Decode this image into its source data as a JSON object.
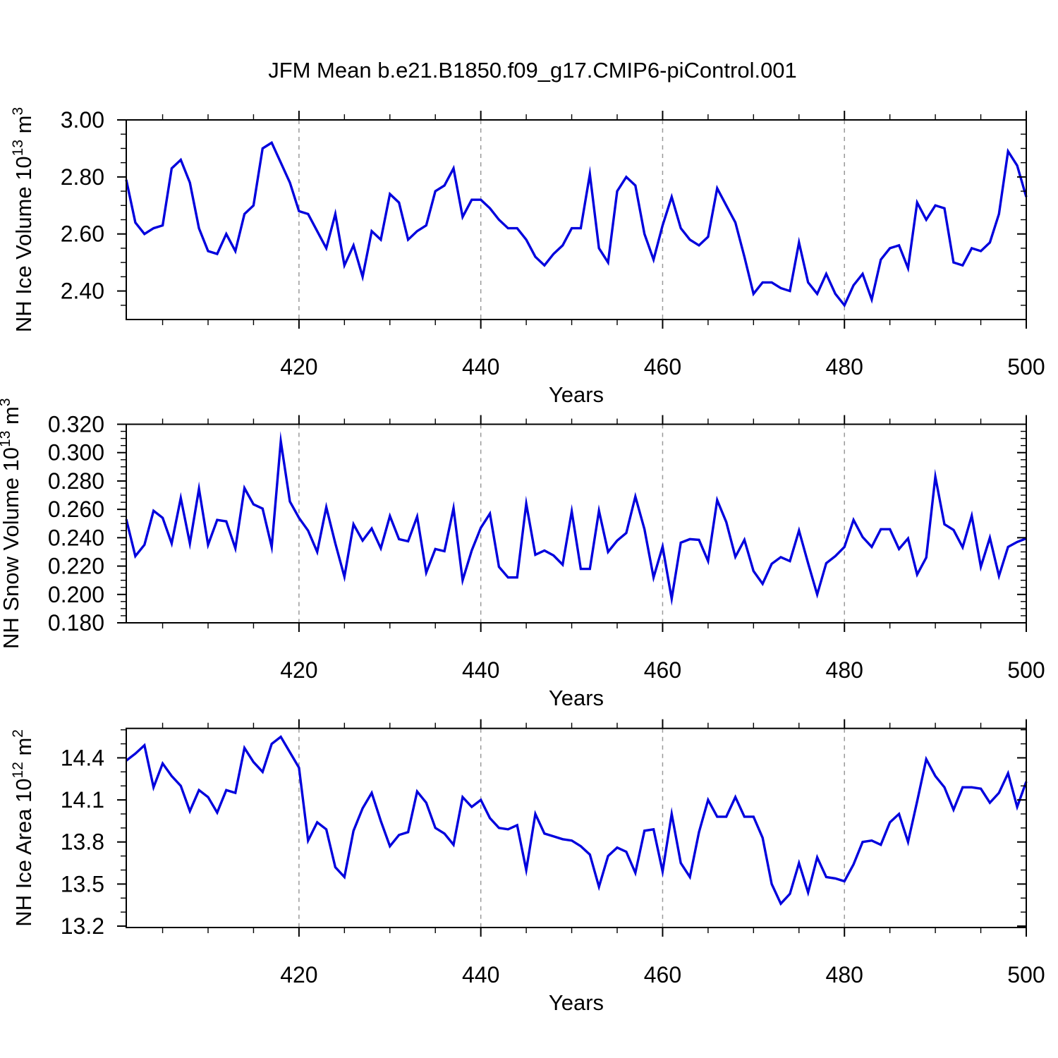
{
  "title": "JFM Mean b.e21.B1850.f09_g17.CMIP6-piControl.001",
  "colors": {
    "line": "#0000dd",
    "axis": "#000000",
    "grid": "#999999",
    "background": "#ffffff"
  },
  "chart_data": [
    {
      "type": "line",
      "name": "nh-ice-volume",
      "ylabel_parts": [
        {
          "t": "NH Ice Volume 10"
        },
        {
          "t": "13",
          "sup": true
        },
        {
          "t": " m"
        },
        {
          "t": "3",
          "sup": true
        }
      ],
      "xlabel": "Years",
      "ylim": [
        2.3,
        3.0
      ],
      "yticks": [
        3.0,
        2.8,
        2.6,
        2.4
      ],
      "ytick_labels": [
        "3.00",
        "2.80",
        "2.60",
        "2.40"
      ],
      "y_minor": [
        2.95,
        2.9,
        2.85,
        2.75,
        2.7,
        2.65,
        2.55,
        2.5,
        2.45,
        2.35
      ],
      "xlim": [
        401,
        500
      ],
      "xticks": [
        420,
        440,
        460,
        480,
        500
      ],
      "xtick_labels": [
        "420",
        "440",
        "460",
        "480",
        "500"
      ],
      "x_minor": [
        405,
        410,
        415,
        425,
        430,
        435,
        445,
        450,
        455,
        465,
        470,
        475,
        485,
        490,
        495
      ],
      "grid_x": [
        420,
        440,
        460,
        480
      ],
      "x_start": 401,
      "values": [
        2.79,
        2.64,
        2.6,
        2.62,
        2.63,
        2.83,
        2.86,
        2.78,
        2.62,
        2.54,
        2.53,
        2.6,
        2.54,
        2.67,
        2.7,
        2.9,
        2.92,
        2.85,
        2.78,
        2.68,
        2.67,
        2.61,
        2.55,
        2.67,
        2.49,
        2.56,
        2.45,
        2.61,
        2.58,
        2.74,
        2.71,
        2.58,
        2.61,
        2.63,
        2.75,
        2.77,
        2.83,
        2.66,
        2.72,
        2.72,
        2.69,
        2.65,
        2.62,
        2.62,
        2.58,
        2.52,
        2.49,
        2.53,
        2.56,
        2.62,
        2.62,
        2.81,
        2.55,
        2.5,
        2.75,
        2.8,
        2.77,
        2.6,
        2.51,
        2.63,
        2.73,
        2.62,
        2.58,
        2.56,
        2.59,
        2.76,
        2.7,
        2.64,
        2.52,
        2.39,
        2.43,
        2.43,
        2.41,
        2.4,
        2.57,
        2.43,
        2.39,
        2.46,
        2.39,
        2.35,
        2.42,
        2.46,
        2.37,
        2.51,
        2.55,
        2.56,
        2.48,
        2.71,
        2.65,
        2.7,
        2.69,
        2.5,
        2.49,
        2.55,
        2.54,
        2.57,
        2.67,
        2.89,
        2.84,
        2.73
      ]
    },
    {
      "type": "line",
      "name": "nh-snow-volume",
      "ylabel_parts": [
        {
          "t": "NH Snow Volume 10"
        },
        {
          "t": "13",
          "sup": true
        },
        {
          "t": " m"
        },
        {
          "t": "3",
          "sup": true
        }
      ],
      "xlabel": "Years",
      "ylim": [
        0.18,
        0.32
      ],
      "yticks": [
        0.32,
        0.3,
        0.28,
        0.26,
        0.24,
        0.22,
        0.2,
        0.18
      ],
      "ytick_labels": [
        "0.320",
        "0.300",
        "0.280",
        "0.260",
        "0.240",
        "0.220",
        "0.200",
        "0.180"
      ],
      "y_minor": [
        0.315,
        0.31,
        0.305,
        0.295,
        0.29,
        0.285,
        0.275,
        0.27,
        0.265,
        0.255,
        0.25,
        0.245,
        0.235,
        0.23,
        0.225,
        0.215,
        0.21,
        0.205,
        0.195,
        0.19,
        0.185
      ],
      "xlim": [
        401,
        500
      ],
      "xticks": [
        420,
        440,
        460,
        480,
        500
      ],
      "xtick_labels": [
        "420",
        "440",
        "460",
        "480",
        "500"
      ],
      "x_minor": [
        405,
        410,
        415,
        425,
        430,
        435,
        445,
        450,
        455,
        465,
        470,
        475,
        485,
        490,
        495
      ],
      "grid_x": [
        420,
        440,
        460,
        480
      ],
      "x_start": 401,
      "values": [
        0.253,
        0.227,
        0.235,
        0.259,
        0.254,
        0.236,
        0.268,
        0.236,
        0.2745,
        0.235,
        0.2525,
        0.2515,
        0.2325,
        0.275,
        0.2635,
        0.2605,
        0.2335,
        0.308,
        0.2655,
        0.254,
        0.245,
        0.23,
        0.2615,
        0.236,
        0.2125,
        0.2495,
        0.238,
        0.2465,
        0.2325,
        0.2553,
        0.239,
        0.2375,
        0.2549,
        0.2154,
        0.232,
        0.2305,
        0.2608,
        0.21,
        0.231,
        0.247,
        0.257,
        0.2195,
        0.212,
        0.212,
        0.264,
        0.228,
        0.231,
        0.2275,
        0.221,
        0.2586,
        0.218,
        0.218,
        0.259,
        0.23,
        0.238,
        0.2433,
        0.269,
        0.246,
        0.212,
        0.2337,
        0.197,
        0.2365,
        0.239,
        0.2385,
        0.2235,
        0.2665,
        0.251,
        0.2265,
        0.2385,
        0.2165,
        0.2075,
        0.2216,
        0.2263,
        0.2235,
        0.245,
        0.222,
        0.2,
        0.222,
        0.227,
        0.2335,
        0.2525,
        0.2405,
        0.2335,
        0.246,
        0.246,
        0.232,
        0.2395,
        0.214,
        0.226,
        0.283,
        0.2495,
        0.2455,
        0.2332,
        0.2555,
        0.2195,
        0.24,
        0.213,
        0.2335,
        0.237,
        0.2395
      ]
    },
    {
      "type": "line",
      "name": "nh-ice-area",
      "ylabel_parts": [
        {
          "t": "NH Ice Area 10"
        },
        {
          "t": "12",
          "sup": true
        },
        {
          "t": " m"
        },
        {
          "t": "2",
          "sup": true
        }
      ],
      "xlabel": "Years",
      "ylim": [
        13.19,
        14.61
      ],
      "yticks": [
        14.4,
        14.1,
        13.8,
        13.5,
        13.2
      ],
      "ytick_labels": [
        "14.4",
        "14.1",
        "13.8",
        "13.5",
        "13.2"
      ],
      "y_minor": [
        14.6,
        14.5,
        14.3,
        14.2,
        14.0,
        13.9,
        13.7,
        13.6,
        13.4,
        13.3
      ],
      "xlim": [
        401,
        500
      ],
      "xticks": [
        420,
        440,
        460,
        480,
        500
      ],
      "xtick_labels": [
        "420",
        "440",
        "460",
        "480",
        "500"
      ],
      "x_minor": [
        405,
        410,
        415,
        425,
        430,
        435,
        445,
        450,
        455,
        465,
        470,
        475,
        485,
        490,
        495
      ],
      "grid_x": [
        420,
        440,
        460,
        480
      ],
      "x_start": 401,
      "values": [
        14.38,
        14.43,
        14.49,
        14.19,
        14.36,
        14.27,
        14.2,
        14.02,
        14.17,
        14.12,
        14.01,
        14.17,
        14.15,
        14.47,
        14.37,
        14.3,
        14.5,
        14.55,
        14.44,
        14.33,
        13.81,
        13.94,
        13.89,
        13.62,
        13.55,
        13.88,
        14.04,
        14.15,
        13.95,
        13.77,
        13.85,
        13.87,
        14.16,
        14.08,
        13.9,
        13.86,
        13.78,
        14.12,
        14.05,
        14.1,
        13.97,
        13.9,
        13.89,
        13.92,
        13.6,
        14.0,
        13.86,
        13.84,
        13.82,
        13.81,
        13.77,
        13.71,
        13.48,
        13.7,
        13.76,
        13.73,
        13.58,
        13.88,
        13.89,
        13.59,
        14.0,
        13.65,
        13.55,
        13.87,
        14.1,
        13.98,
        13.98,
        14.12,
        13.98,
        13.98,
        13.83,
        13.5,
        13.36,
        13.43,
        13.65,
        13.44,
        13.69,
        13.55,
        13.54,
        13.52,
        13.64,
        13.8,
        13.81,
        13.78,
        13.94,
        14.0,
        13.8,
        14.09,
        14.39,
        14.27,
        14.19,
        14.03,
        14.19,
        14.19,
        14.18,
        14.08,
        14.15,
        14.29,
        14.05,
        14.23
      ]
    }
  ]
}
